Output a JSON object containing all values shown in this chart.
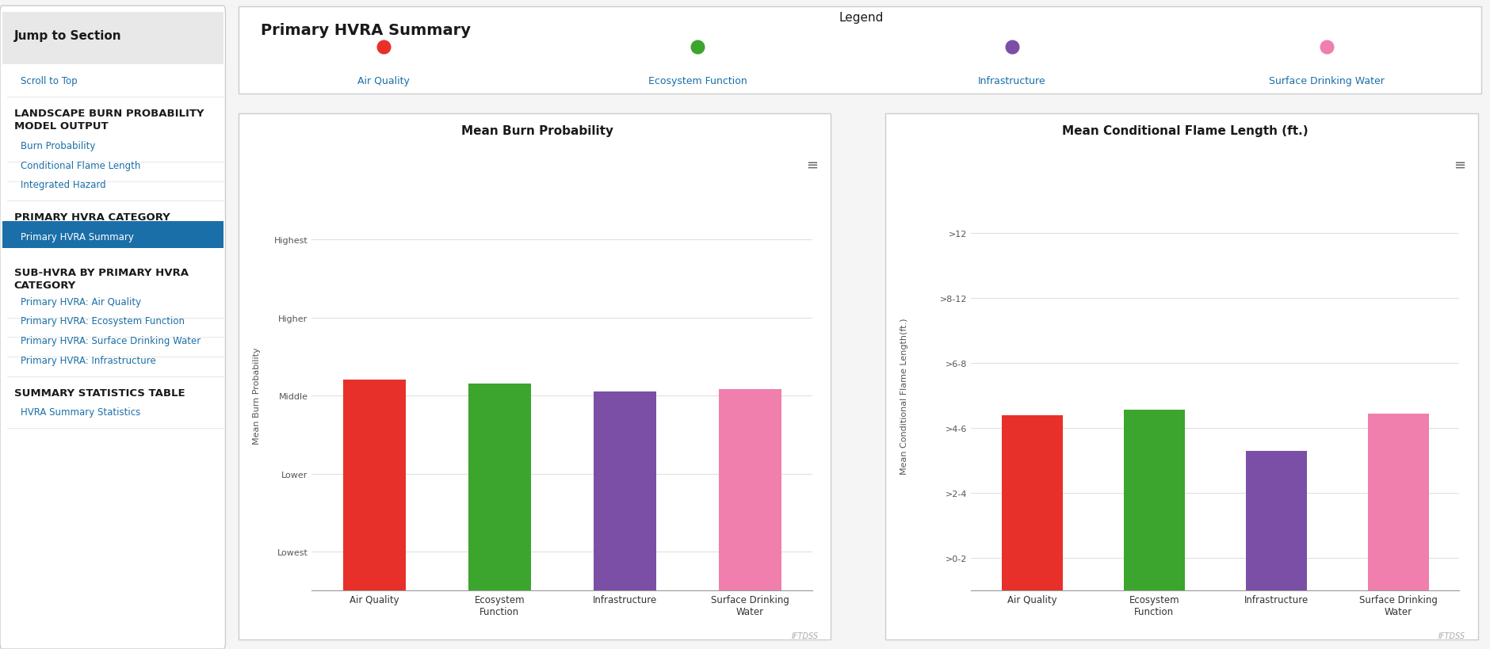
{
  "title": "Primary HVRA Summary",
  "page_bg": "#f5f5f5",
  "panel_bg": "#ffffff",
  "sidebar": {
    "bg": "#ffffff",
    "border": "#cccccc",
    "title": "Jump to Section",
    "title_bg": "#e8e8e8",
    "items": [
      {
        "text": "Scroll to Top",
        "color": "#1a6fa8",
        "bold": false,
        "indent": 1
      },
      {
        "text": "LANDSCAPE BURN PROBABILITY\nMODEL OUTPUT",
        "color": "#1a1a1a",
        "bold": true,
        "indent": 0
      },
      {
        "text": "Burn Probability",
        "color": "#1a6fa8",
        "bold": false,
        "indent": 1
      },
      {
        "text": "Conditional Flame Length",
        "color": "#1a6fa8",
        "bold": false,
        "indent": 1
      },
      {
        "text": "Integrated Hazard",
        "color": "#1a6fa8",
        "bold": false,
        "indent": 1
      },
      {
        "text": "PRIMARY HVRA CATEGORY",
        "color": "#1a1a1a",
        "bold": true,
        "indent": 0
      },
      {
        "text": "Primary HVRA Summary",
        "color": "#ffffff",
        "bold": false,
        "indent": 1,
        "highlight": "#1a6fa8"
      },
      {
        "text": "SUB-HVRA BY PRIMARY HVRA\nCATEGORY",
        "color": "#1a1a1a",
        "bold": true,
        "indent": 0
      },
      {
        "text": "Primary HVRA: Air Quality",
        "color": "#1a6fa8",
        "bold": false,
        "indent": 1
      },
      {
        "text": "Primary HVRA: Ecosystem Function",
        "color": "#1a6fa8",
        "bold": false,
        "indent": 1
      },
      {
        "text": "Primary HVRA: Surface Drinking Water",
        "color": "#1a6fa8",
        "bold": false,
        "indent": 1
      },
      {
        "text": "Primary HVRA: Infrastructure",
        "color": "#1a6fa8",
        "bold": false,
        "indent": 1
      },
      {
        "text": "SUMMARY STATISTICS TABLE",
        "color": "#1a1a1a",
        "bold": true,
        "indent": 0
      },
      {
        "text": "HVRA Summary Statistics",
        "color": "#1a6fa8",
        "bold": false,
        "indent": 1
      }
    ]
  },
  "legend": {
    "title": "Legend",
    "items": [
      {
        "label": "Air Quality",
        "color": "#e8302a"
      },
      {
        "label": "Ecosystem Function",
        "color": "#3ba52e"
      },
      {
        "label": "Infrastructure",
        "color": "#7b4fa6"
      },
      {
        "label": "Surface Drinking Water",
        "color": "#f07fad"
      }
    ]
  },
  "chart1": {
    "title": "Mean Burn Probability",
    "ylabel": "Mean Burn Probability",
    "categories": [
      "Air Quality",
      "Ecosystem\nFunction",
      "Infrastructure",
      "Surface Drinking\nWater"
    ],
    "values": [
      3.2,
      3.15,
      3.05,
      3.08
    ],
    "colors": [
      "#e8302a",
      "#3ba52e",
      "#7b4fa6",
      "#f07fad"
    ],
    "yticks": [
      "Lowest",
      "Lower",
      "Middle",
      "Higher",
      "Highest"
    ],
    "ytick_vals": [
      1,
      2,
      3,
      4,
      5
    ],
    "ylim": [
      0.5,
      5.5
    ],
    "menu_icon": "≡"
  },
  "chart2": {
    "title": "Mean Conditional Flame Length (ft.)",
    "ylabel": "Mean Conditional Flame Length(ft.)",
    "categories": [
      "Air Quality",
      "Ecosystem\nFunction",
      "Infrastructure",
      "Surface Drinking\nWater"
    ],
    "values": [
      3.2,
      3.28,
      2.65,
      3.22
    ],
    "colors": [
      "#e8302a",
      "#3ba52e",
      "#7b4fa6",
      "#f07fad"
    ],
    "yticks": [
      ">0-2",
      ">2-4",
      ">4-6",
      ">6-8",
      ">8-12",
      ">12"
    ],
    "ytick_vals": [
      1,
      2,
      3,
      4,
      5,
      6
    ],
    "ylim": [
      0.5,
      6.5
    ],
    "menu_icon": "≡"
  },
  "watermark": "IFTDSS"
}
